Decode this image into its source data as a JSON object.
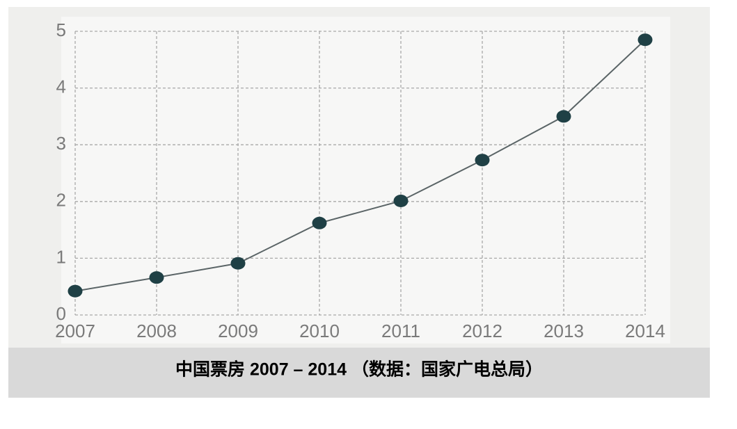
{
  "chart_data": {
    "type": "line",
    "title": "中国票房 2007 – 2014 （数据：国家广电总局）",
    "categories": [
      "2007",
      "2008",
      "2009",
      "2010",
      "2011",
      "2012",
      "2013",
      "2014"
    ],
    "values": [
      0.42,
      0.66,
      0.91,
      1.62,
      2.01,
      2.73,
      3.5,
      4.85
    ],
    "color": "#5a6466",
    "marker_color": "#1f4045",
    "ylim": [
      0,
      5
    ],
    "yticks": [
      0,
      1,
      2,
      3,
      4,
      5
    ],
    "grid": true
  }
}
